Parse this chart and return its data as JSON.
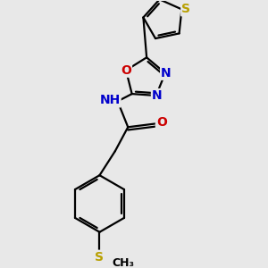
{
  "background_color": "#e8e8e8",
  "bond_color": "#000000",
  "atom_colors": {
    "S": "#b8a000",
    "N": "#0000cc",
    "O": "#cc0000",
    "H": "#555555"
  },
  "line_width": 1.6,
  "dbo": 0.032,
  "font_size": 10,
  "font_size_small": 9
}
